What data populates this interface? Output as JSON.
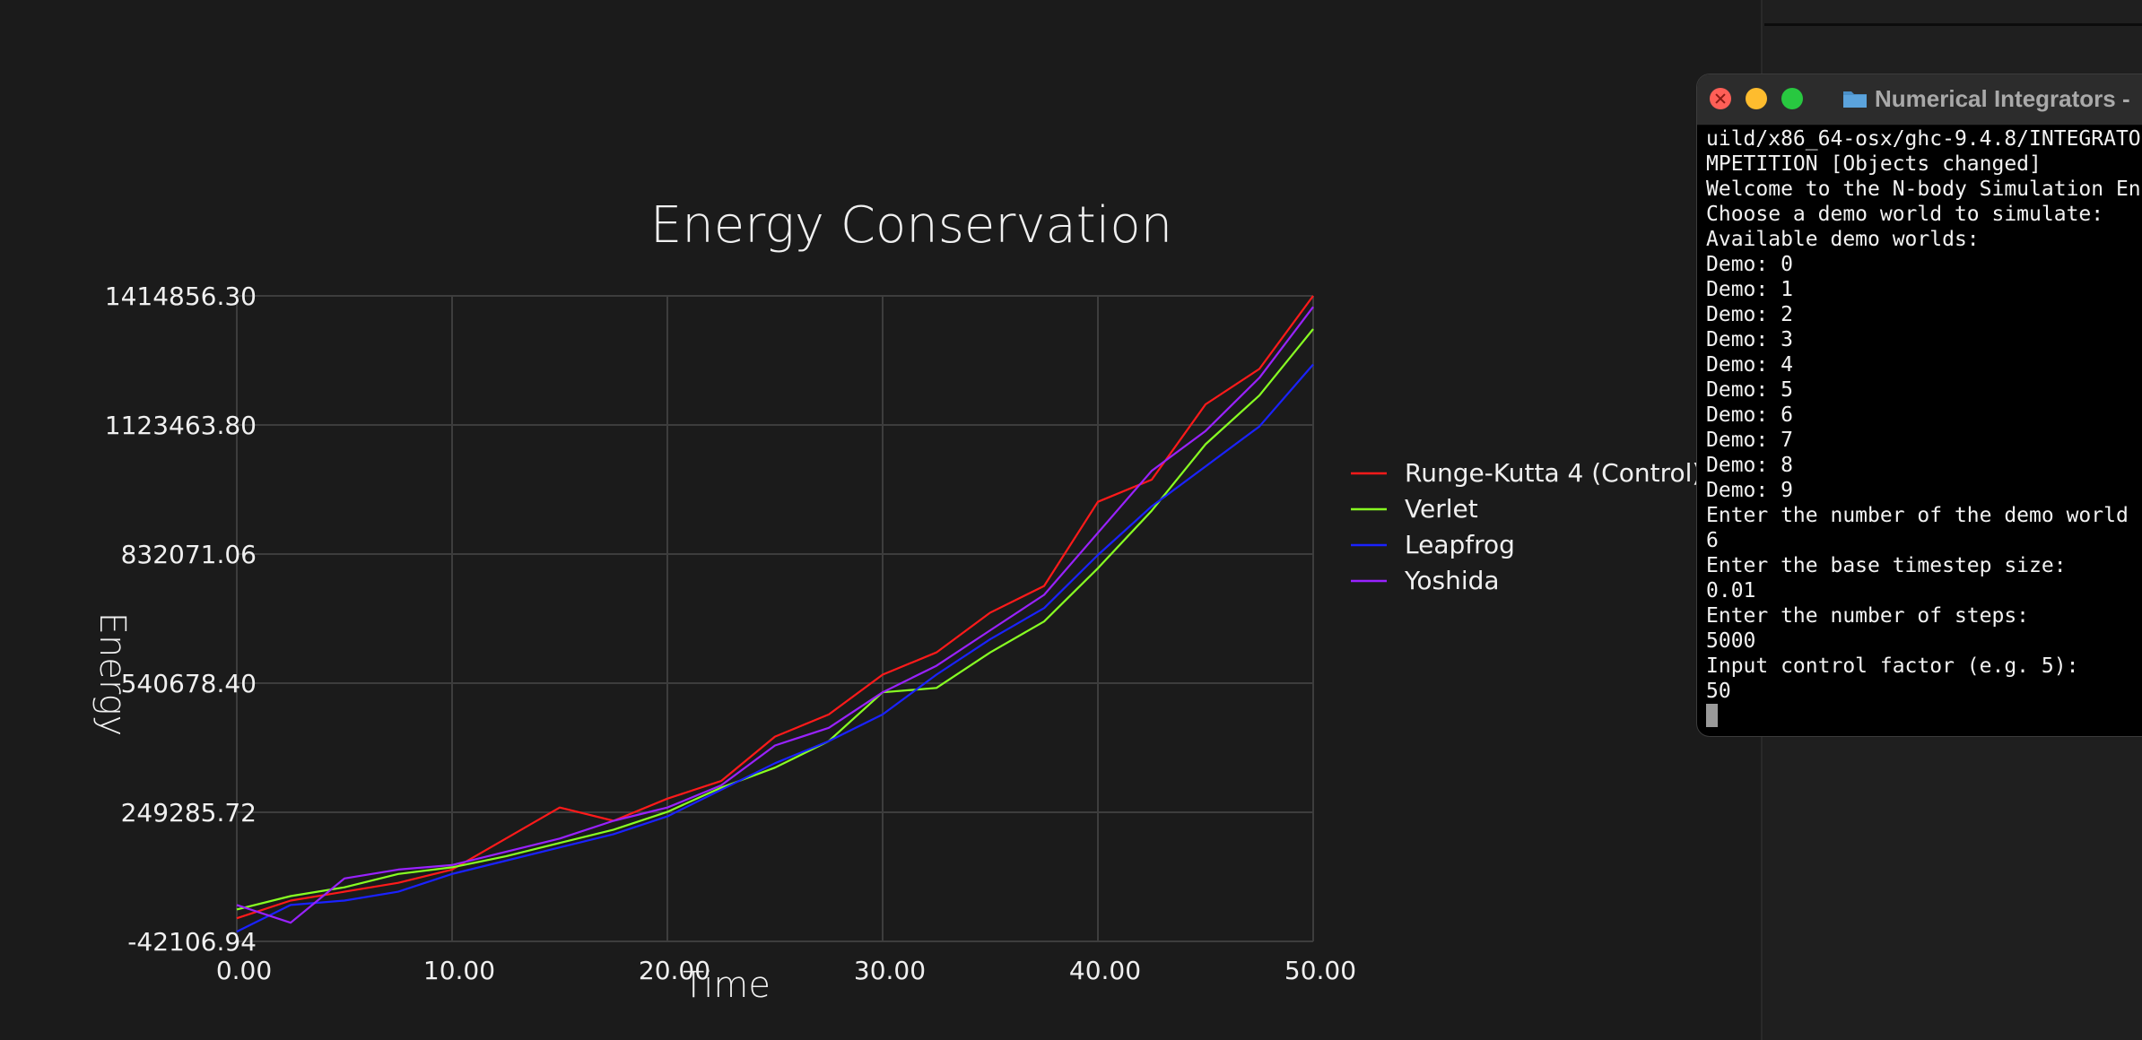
{
  "chart_data": {
    "type": "line",
    "title": "Energy Conservation",
    "xlabel": "Time",
    "ylabel": "Energy",
    "xlim": [
      0,
      50
    ],
    "ylim": [
      -42106.94,
      1414856.3
    ],
    "x_ticks": [
      "0.00",
      "10.00",
      "20.00",
      "30.00",
      "40.00",
      "50.00"
    ],
    "y_ticks": [
      "-42106.94",
      "249285.72",
      "540678.40",
      "832071.06",
      "1123463.80",
      "1414856.30"
    ],
    "grid": true,
    "legend_position": "right",
    "x": [
      0,
      2.5,
      5,
      7.5,
      10,
      12.5,
      15,
      17.5,
      20,
      22.5,
      25,
      27.5,
      30,
      32.5,
      35,
      37.5,
      40,
      42.5,
      45,
      47.5,
      50
    ],
    "series": [
      {
        "name": "Runge-Kutta 4 (Control)",
        "color": "#ff1a1a",
        "values": [
          10000,
          50000,
          70000,
          90000,
          120000,
          190000,
          260000,
          230000,
          280000,
          320000,
          420000,
          470000,
          560000,
          610000,
          700000,
          760000,
          950000,
          1000000,
          1170000,
          1250000,
          1414856
        ]
      },
      {
        "name": "Verlet",
        "color": "#88ff22",
        "values": [
          30000,
          60000,
          80000,
          110000,
          125000,
          150000,
          180000,
          210000,
          250000,
          305000,
          350000,
          410000,
          520000,
          530000,
          610000,
          680000,
          800000,
          930000,
          1080000,
          1190000,
          1340000
        ]
      },
      {
        "name": "Leapfrog",
        "color": "#1a22ff",
        "values": [
          -20000,
          40000,
          50000,
          70000,
          110000,
          140000,
          170000,
          200000,
          240000,
          300000,
          360000,
          410000,
          470000,
          560000,
          640000,
          710000,
          830000,
          940000,
          1030000,
          1120000,
          1260000
        ]
      },
      {
        "name": "Yoshida",
        "color": "#9922ff",
        "values": [
          40000,
          0,
          100000,
          120000,
          130000,
          160000,
          190000,
          230000,
          260000,
          310000,
          400000,
          440000,
          520000,
          580000,
          660000,
          740000,
          880000,
          1020000,
          1110000,
          1230000,
          1390000
        ]
      }
    ]
  },
  "terminal": {
    "title": "Numerical Integrators - ",
    "lines": [
      "uild/x86_64-osx/ghc-9.4.8/INTEGRATO",
      "MPETITION [Objects changed]",
      "Welcome to the N-body Simulation En",
      "Choose a demo world to simulate:",
      "Available demo worlds:",
      "Demo: 0",
      "Demo: 1",
      "Demo: 2",
      "Demo: 3",
      "Demo: 4",
      "Demo: 5",
      "Demo: 6",
      "Demo: 7",
      "Demo: 8",
      "Demo: 9",
      "Enter the number of the demo world",
      "6",
      "Enter the base timestep size:",
      "0.01",
      "Enter the number of steps:",
      "5000",
      "Input control factor (e.g. 5):",
      "50"
    ]
  },
  "icons": {
    "close": "close-icon",
    "minimize": "minimize-icon",
    "maximize": "maximize-icon",
    "folder": "folder-icon"
  }
}
